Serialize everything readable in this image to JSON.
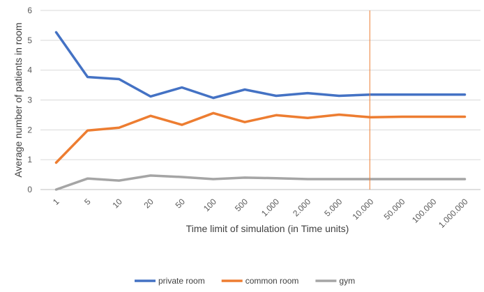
{
  "chart_data": {
    "type": "line",
    "title": "",
    "xlabel": "Time limit of simulation (in Time units)",
    "ylabel": "Average number of patients in room",
    "ylim": [
      0,
      6
    ],
    "yticks": [
      "0",
      "1",
      "2",
      "3",
      "4",
      "5",
      "6"
    ],
    "categories": [
      "1",
      "5",
      "10",
      "20",
      "50",
      "100",
      "500",
      "1.000",
      "2.000",
      "5.000",
      "10.000",
      "50.000",
      "100.000",
      "1.000.000"
    ],
    "grid": "horizontal",
    "legend_position": "bottom",
    "series": [
      {
        "name": "private room",
        "color": "#4472C4",
        "values": [
          5.27,
          3.77,
          3.7,
          3.12,
          3.42,
          3.07,
          3.35,
          3.14,
          3.23,
          3.14,
          3.18,
          3.18,
          3.18,
          3.18
        ]
      },
      {
        "name": "common room",
        "color": "#ED7D31",
        "values": [
          0.9,
          1.98,
          2.07,
          2.47,
          2.17,
          2.56,
          2.26,
          2.49,
          2.4,
          2.51,
          2.42,
          2.44,
          2.44,
          2.44
        ]
      },
      {
        "name": "gym",
        "color": "#A5A5A5",
        "values": [
          0.0,
          0.37,
          0.3,
          0.47,
          0.42,
          0.35,
          0.4,
          0.38,
          0.35,
          0.35,
          0.35,
          0.35,
          0.35,
          0.35
        ]
      }
    ],
    "marker_line": {
      "after_category": "10.000",
      "color": "#ED7D31"
    }
  }
}
